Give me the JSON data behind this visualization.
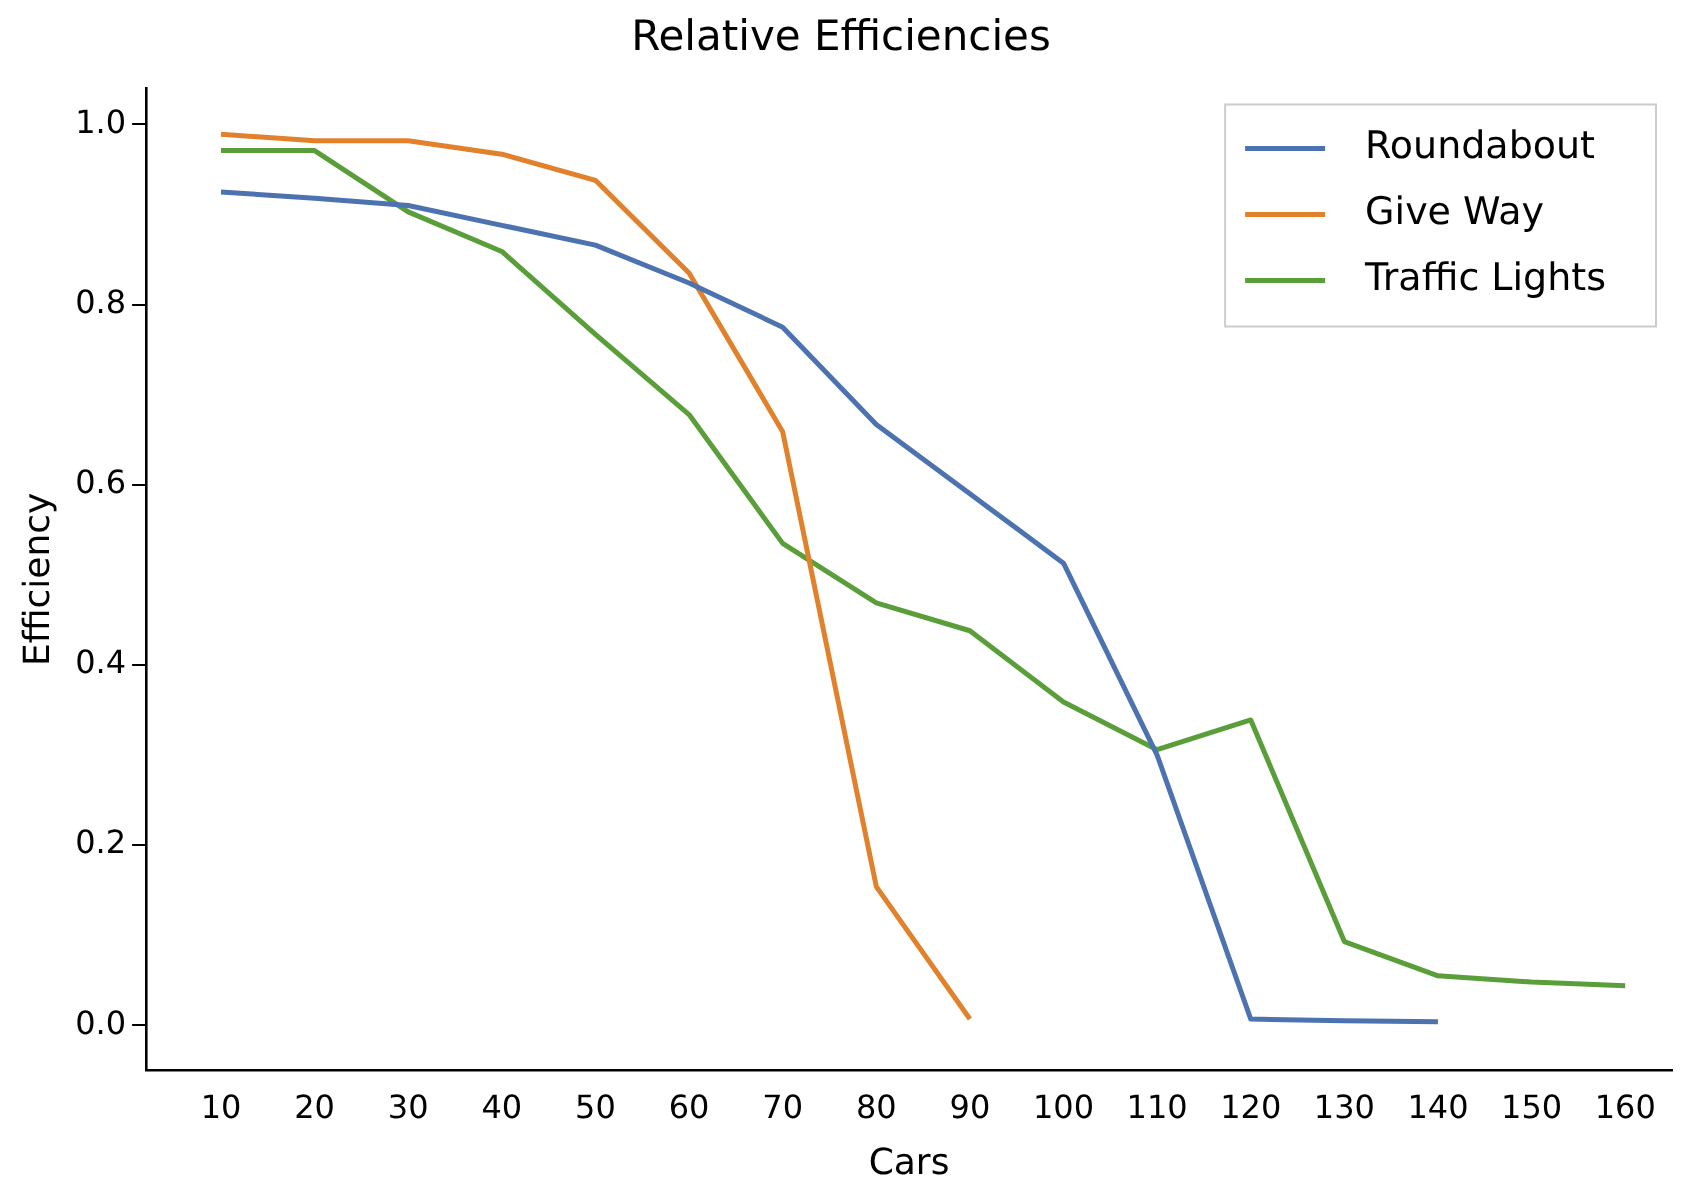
{
  "chart_data": {
    "type": "line",
    "title": "Relative Efficiencies",
    "xlabel": "Cars",
    "ylabel": "Efficiency",
    "xlim": [
      2,
      165
    ],
    "xticks": [
      10,
      20,
      30,
      40,
      50,
      60,
      70,
      80,
      90,
      100,
      110,
      120,
      130,
      140,
      150,
      160
    ],
    "ylim": [
      -0.05,
      1.04
    ],
    "yticks": [
      {
        "value": 0,
        "label": "0.0"
      },
      {
        "value": 0.2,
        "label": "0.2"
      },
      {
        "value": 0.4,
        "label": "0.4"
      },
      {
        "value": 0.6,
        "label": "0.6"
      },
      {
        "value": 0.8,
        "label": "0.8"
      },
      {
        "value": 1,
        "label": "1.0"
      }
    ],
    "grid": false,
    "legend": "top right",
    "marker": "none",
    "line_style": "solid",
    "series": [
      {
        "name": "Roundabout",
        "color": "#4c72b0",
        "x": [
          10,
          20,
          30,
          40,
          50,
          60,
          70,
          80,
          90,
          100,
          110,
          120,
          130,
          140
        ],
        "values": [
          0.925,
          0.918,
          0.91,
          0.888,
          0.866,
          0.824,
          0.775,
          0.667,
          0.59,
          0.513,
          0.3,
          0.007,
          0.005,
          0.004
        ]
      },
      {
        "name": "Give Way",
        "color": "#e1812c",
        "x": [
          10,
          20,
          30,
          40,
          50,
          60,
          70,
          80,
          90
        ],
        "values": [
          0.989,
          0.982,
          0.982,
          0.967,
          0.938,
          0.835,
          0.659,
          0.154,
          0.007
        ]
      },
      {
        "name": "Traffic Lights",
        "color": "#5a9e3a",
        "x": [
          10,
          20,
          30,
          40,
          50,
          60,
          70,
          80,
          90,
          100,
          110,
          120,
          130,
          140,
          150,
          160
        ],
        "values": [
          0.971,
          0.971,
          0.903,
          0.859,
          0.767,
          0.678,
          0.535,
          0.469,
          0.438,
          0.359,
          0.306,
          0.339,
          0.093,
          0.055,
          0.048,
          0.044
        ]
      }
    ]
  }
}
